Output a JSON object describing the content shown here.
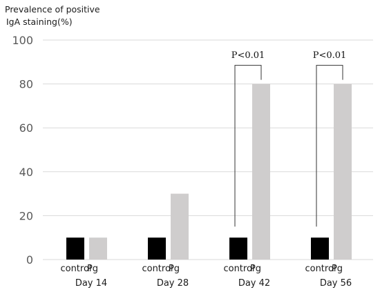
{
  "chart_data": {
    "type": "bar",
    "ylabel_lines": [
      "Prevalence of positive",
      "IgA staining(%)"
    ],
    "ylim": [
      0,
      100
    ],
    "yticks": [
      0,
      20,
      40,
      60,
      80,
      100
    ],
    "groups": [
      {
        "day": "Day 14",
        "control_label": "control",
        "pg_label": "Pg",
        "control": 10,
        "pg": 10,
        "pvalue": ""
      },
      {
        "day": "Day 28",
        "control_label": "control",
        "pg_label": "Pg",
        "control": 10,
        "pg": 30,
        "pvalue": ""
      },
      {
        "day": "Day 42",
        "control_label": "control",
        "pg_label": "Pg",
        "control": 10,
        "pg": 80,
        "pvalue": "P<0.01"
      },
      {
        "day": "Day 56",
        "control_label": "control",
        "pg_label": "Pg",
        "control": 10,
        "pg": 80,
        "pvalue": "P<0.01"
      }
    ],
    "colors": {
      "control": "#000000",
      "pg": "#cfcdcd",
      "grid": "#d9d9d9",
      "bracket": "#333333"
    },
    "grid": true
  }
}
